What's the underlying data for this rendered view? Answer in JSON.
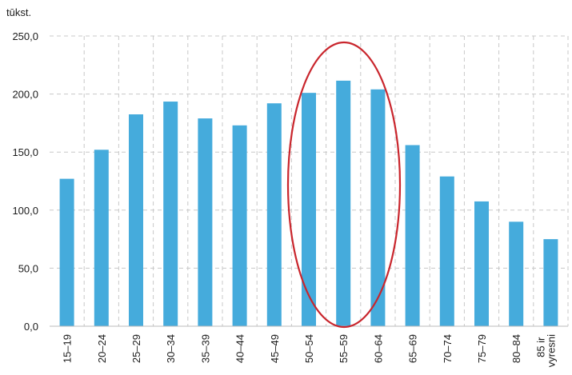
{
  "chart_data": {
    "type": "bar",
    "y_axis_label": "tūkst.",
    "categories": [
      "15–19",
      "20–24",
      "25–29",
      "30–34",
      "35–39",
      "40–44",
      "45–49",
      "50–54",
      "55–59",
      "60–64",
      "65–69",
      "70–74",
      "75–79",
      "80–84",
      "85 ir vyresni"
    ],
    "values": [
      127,
      152,
      182.5,
      193.5,
      179,
      173,
      192,
      201,
      211.5,
      204,
      156,
      129,
      107.5,
      90,
      75
    ],
    "color": "#45abdc",
    "ylim": [
      0,
      250
    ],
    "yticks": [
      {
        "value": 0,
        "label": "0,0"
      },
      {
        "value": 50,
        "label": "50,0"
      },
      {
        "value": 100,
        "label": "100,0"
      },
      {
        "value": 150,
        "label": "150,0"
      },
      {
        "value": 200,
        "label": "200,0"
      },
      {
        "value": 250,
        "label": "250,0"
      }
    ],
    "grid": true
  }
}
